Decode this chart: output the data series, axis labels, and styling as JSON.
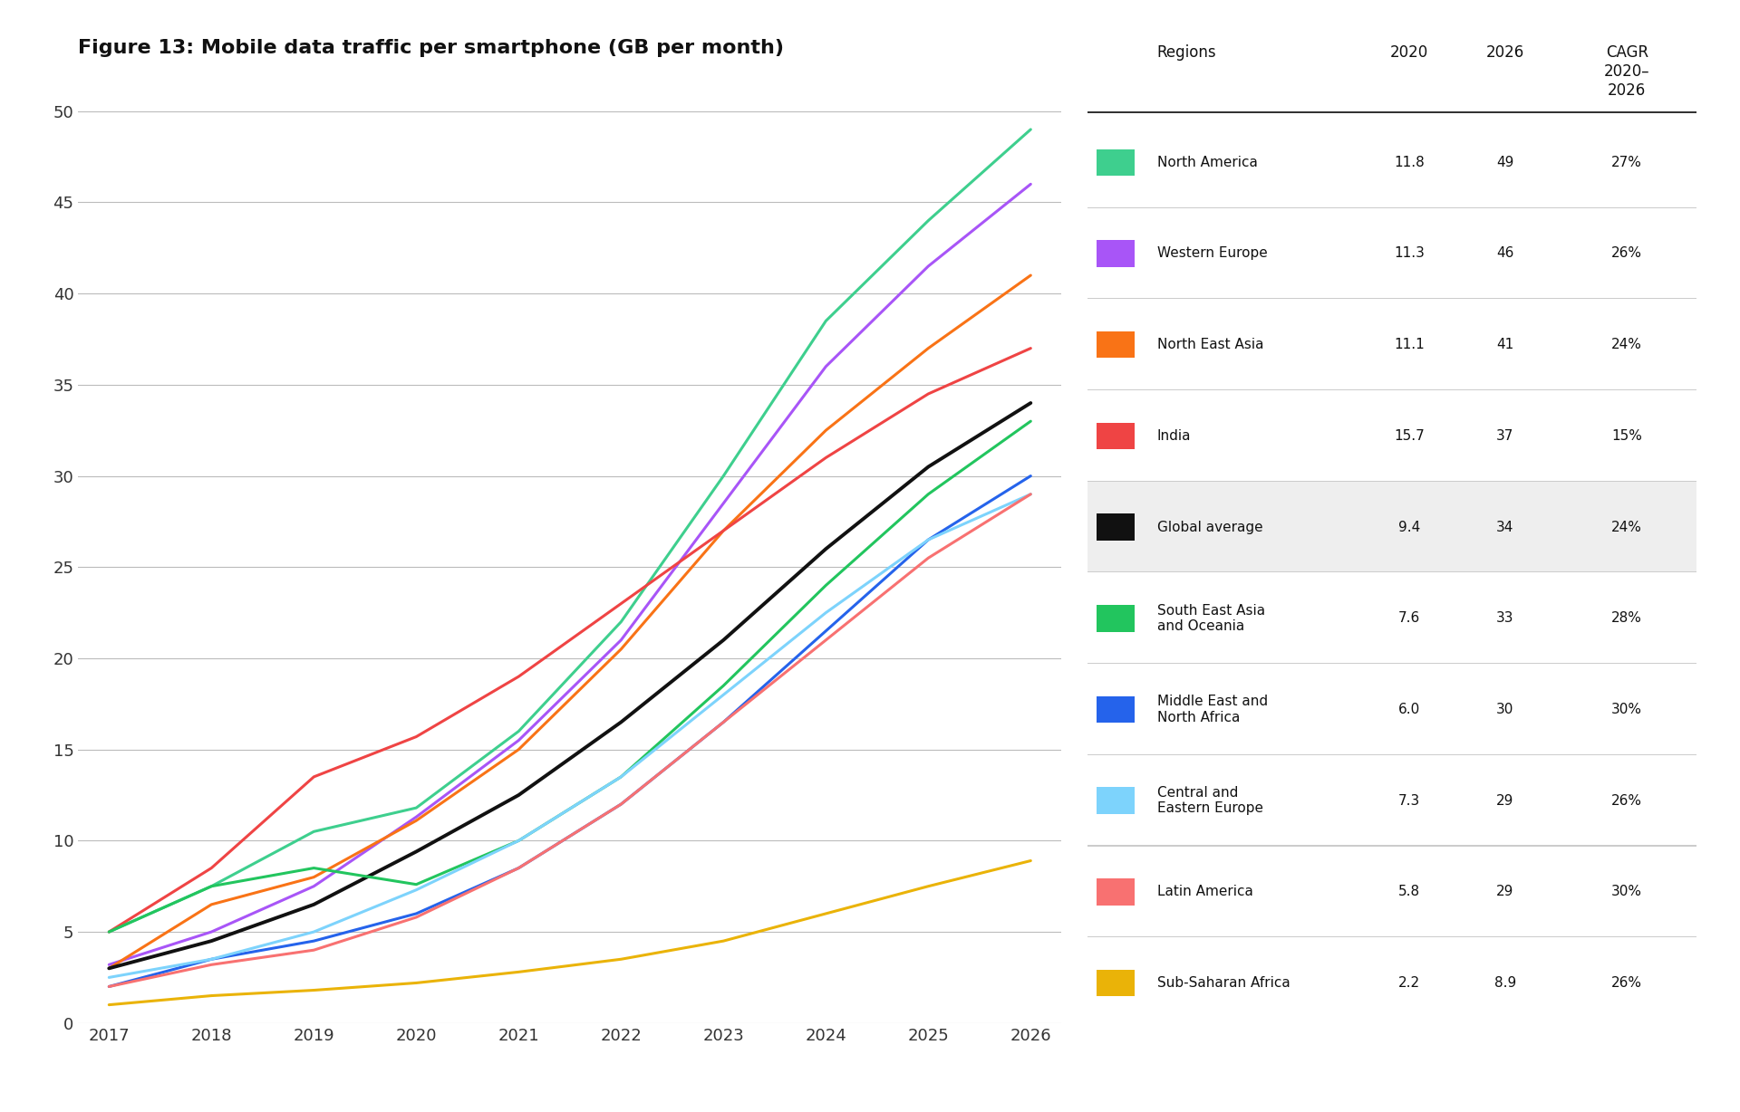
{
  "title": "Figure 13: Mobile data traffic per smartphone (GB per month)",
  "years": [
    2017,
    2018,
    2019,
    2020,
    2021,
    2022,
    2023,
    2024,
    2025,
    2026
  ],
  "series": [
    {
      "name": "North America",
      "color": "#3ecf8e",
      "values": [
        5.0,
        7.5,
        10.5,
        11.8,
        16.0,
        22.0,
        30.0,
        38.5,
        44.0,
        49.0
      ],
      "val_2020": "11.8",
      "val_2026": "49",
      "cagr": "27%"
    },
    {
      "name": "Western Europe",
      "color": "#a855f7",
      "values": [
        3.2,
        5.0,
        7.5,
        11.3,
        15.5,
        21.0,
        28.5,
        36.0,
        41.5,
        46.0
      ],
      "val_2020": "11.3",
      "val_2026": "46",
      "cagr": "26%"
    },
    {
      "name": "North East Asia",
      "color": "#f97316",
      "values": [
        3.0,
        6.5,
        8.0,
        11.1,
        15.0,
        20.5,
        27.0,
        32.5,
        37.0,
        41.0
      ],
      "val_2020": "11.1",
      "val_2026": "41",
      "cagr": "24%"
    },
    {
      "name": "India",
      "color": "#ef4444",
      "values": [
        5.0,
        8.5,
        13.5,
        15.7,
        19.0,
        23.0,
        27.0,
        31.0,
        34.5,
        37.0
      ],
      "val_2020": "15.7",
      "val_2026": "37",
      "cagr": "15%"
    },
    {
      "name": "Global average",
      "color": "#111111",
      "values": [
        3.0,
        4.5,
        6.5,
        9.4,
        12.5,
        16.5,
        21.0,
        26.0,
        30.5,
        34.0
      ],
      "val_2020": "9.4",
      "val_2026": "34",
      "cagr": "24%",
      "highlight": true
    },
    {
      "name": "South East Asia\nand Oceania",
      "color": "#22c55e",
      "values": [
        5.0,
        7.5,
        8.5,
        7.6,
        10.0,
        13.5,
        18.5,
        24.0,
        29.0,
        33.0
      ],
      "val_2020": "7.6",
      "val_2026": "33",
      "cagr": "28%"
    },
    {
      "name": "Middle East and\nNorth Africa",
      "color": "#2563eb",
      "values": [
        2.0,
        3.5,
        4.5,
        6.0,
        8.5,
        12.0,
        16.5,
        21.5,
        26.5,
        30.0
      ],
      "val_2020": "6.0",
      "val_2026": "30",
      "cagr": "30%"
    },
    {
      "name": "Central and\nEastern Europe",
      "color": "#7dd3fc",
      "values": [
        2.5,
        3.5,
        5.0,
        7.3,
        10.0,
        13.5,
        18.0,
        22.5,
        26.5,
        29.0
      ],
      "val_2020": "7.3",
      "val_2026": "29",
      "cagr": "26%"
    },
    {
      "name": "Latin America",
      "color": "#f87171",
      "values": [
        2.0,
        3.2,
        4.0,
        5.8,
        8.5,
        12.0,
        16.5,
        21.0,
        25.5,
        29.0
      ],
      "val_2020": "5.8",
      "val_2026": "29",
      "cagr": "30%"
    },
    {
      "name": "Sub-Saharan Africa",
      "color": "#eab308",
      "values": [
        1.0,
        1.5,
        1.8,
        2.2,
        2.8,
        3.5,
        4.5,
        6.0,
        7.5,
        8.9
      ],
      "val_2020": "2.2",
      "val_2026": "8.9",
      "cagr": "26%"
    }
  ],
  "ylim": [
    0,
    50
  ],
  "yticks": [
    0,
    5,
    10,
    15,
    20,
    25,
    30,
    35,
    40,
    45,
    50
  ],
  "background_color": "#ffffff",
  "highlight_row_color": "#eeeeee",
  "col_regions": "Regions",
  "col_2020": "2020",
  "col_2026": "2026",
  "col_cagr": "CAGR\n2020–\n2026"
}
